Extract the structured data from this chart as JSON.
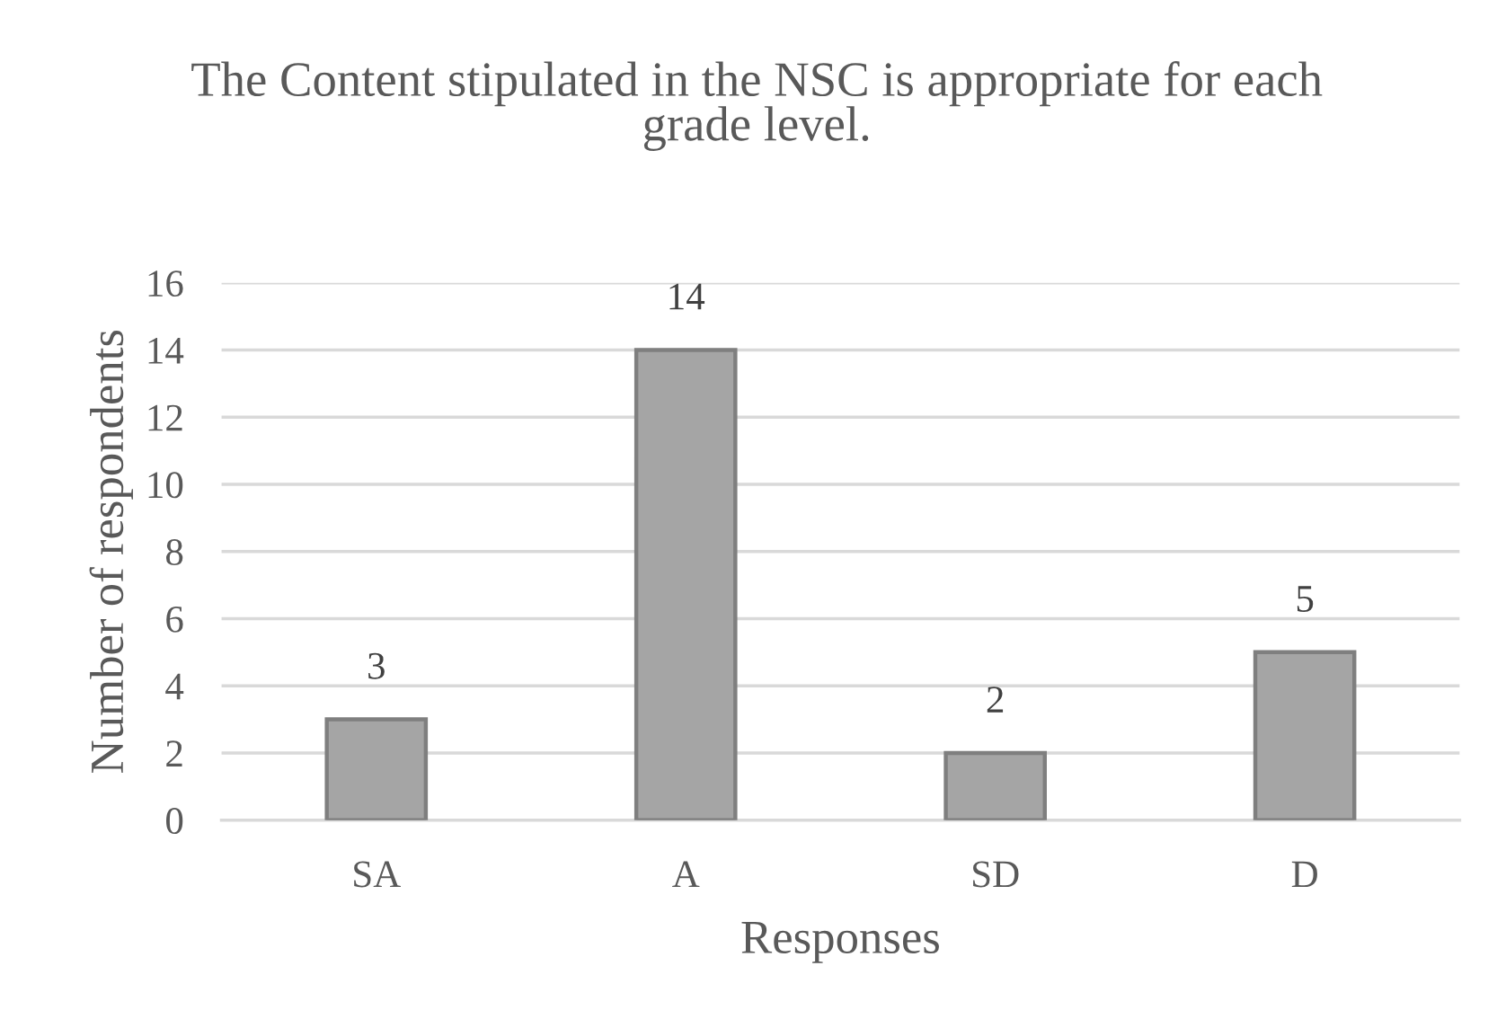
{
  "chart_data": {
    "type": "bar",
    "title": "The Content stipulated in the NSC is appropriate for each grade level.",
    "xlabel": "Responses",
    "ylabel": "Number of respondents",
    "categories": [
      "SA",
      "A",
      "SD",
      "D"
    ],
    "series": [
      {
        "color": "#a5a5a5",
        "values": [
          3,
          14,
          2,
          5
        ]
      }
    ],
    "ylim": [
      0,
      16
    ],
    "yticks": [
      0,
      2,
      4,
      6,
      8,
      10,
      12,
      14,
      16
    ],
    "grid": "y",
    "data_labels": true
  }
}
